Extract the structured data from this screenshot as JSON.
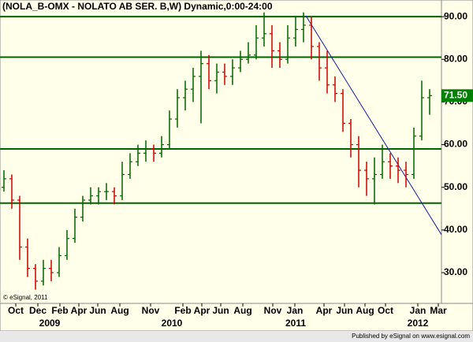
{
  "chart_data": {
    "type": "ohlc",
    "title": "(NOLA_B-OMX - NOLATO AB SER. B,W) Dynamic,0:00-24:00",
    "copyright": "© eSignal, 2011",
    "footer": "Published by eSignal on www.esignal.com",
    "x": [
      1.25,
      3.75,
      6.25,
      8.75,
      11.25,
      13.75,
      16.25,
      18.75,
      21.25,
      23.75,
      26.25,
      28.75,
      31.25,
      33.75,
      36.25,
      38.75,
      41.25,
      43.75,
      46.25,
      48.75,
      51.25,
      53.75,
      56.25,
      58.75,
      61.25,
      63.75,
      66.25,
      68.75,
      71.25,
      73.75,
      76.25,
      78.75,
      81.25,
      83.75,
      86.25,
      88.75,
      91.25,
      93.75,
      96.25,
      98.75,
      101.25,
      103.75,
      106.25,
      108.75,
      111.25,
      113.75,
      116.25,
      118.75,
      121.25,
      123.75,
      126.25,
      128.75,
      131.25,
      133.75,
      136.25
    ],
    "open": [
      50,
      52,
      47,
      36,
      31,
      28,
      31,
      30,
      34,
      38,
      43,
      47,
      48,
      49,
      49,
      48,
      53,
      56,
      58,
      59,
      58,
      60,
      66,
      71,
      73,
      76,
      79,
      75,
      77,
      76,
      78,
      80,
      81,
      85,
      86,
      82,
      80,
      85,
      87,
      88,
      83,
      78,
      74,
      72,
      65,
      60,
      54,
      52,
      53,
      56,
      55,
      54,
      53,
      62,
      71
    ],
    "high": [
      54,
      53,
      48,
      38,
      32,
      33,
      33,
      36,
      40,
      45,
      48,
      50,
      50,
      51,
      50,
      56,
      58,
      60,
      61,
      60,
      62,
      68,
      73,
      75,
      78,
      82,
      81,
      79,
      79,
      80,
      82,
      84,
      88,
      91,
      88,
      84,
      88,
      90,
      91,
      90,
      84,
      82,
      76,
      73,
      66,
      62,
      56,
      57,
      60,
      58,
      57,
      56,
      64,
      75,
      73
    ],
    "low": [
      49,
      45,
      33,
      29,
      26,
      27,
      28,
      29,
      33,
      37,
      42,
      46,
      46,
      47,
      46,
      47,
      52,
      55,
      56,
      56,
      57,
      59,
      64,
      68,
      70,
      65,
      73,
      72,
      74,
      74,
      77,
      79,
      80,
      83,
      78,
      78,
      79,
      83,
      84,
      80,
      75,
      72,
      70,
      63,
      57,
      50,
      48,
      46,
      52,
      52,
      51,
      50,
      52,
      61,
      67
    ],
    "close": [
      52,
      47,
      36,
      31,
      28,
      31,
      30,
      34,
      38,
      43,
      47,
      48,
      49,
      49,
      48,
      53,
      56,
      58,
      59,
      58,
      60,
      66,
      71,
      73,
      76,
      79,
      75,
      77,
      76,
      78,
      80,
      81,
      85,
      86,
      82,
      80,
      85,
      87,
      88,
      83,
      78,
      74,
      72,
      65,
      60,
      54,
      52,
      53,
      56,
      55,
      54,
      53,
      62,
      71,
      71.5
    ],
    "up_color": "#006400",
    "down_color": "#cc0000",
    "last_price": {
      "value": 71.5,
      "label": "71.50"
    },
    "last_price_color": "#008000",
    "hlines": [
      90,
      80.5,
      59,
      46.3
    ],
    "hline_color": "#006400",
    "trendline": {
      "x": [
        97,
        140
      ],
      "y": [
        90.2,
        38.9
      ],
      "color": "#1a1aa0"
    },
    "xlim": [
      0,
      140
    ],
    "ylim": [
      22.8,
      93.9
    ],
    "yticks": [
      {
        "value": 90,
        "label": "90.00"
      },
      {
        "value": 80,
        "label": "80.00"
      },
      {
        "value": 70,
        "label": "70.00"
      },
      {
        "value": 60,
        "label": "60.00"
      },
      {
        "value": 50,
        "label": "50.00"
      },
      {
        "value": 40,
        "label": "40.00"
      },
      {
        "value": 30,
        "label": "30.00"
      }
    ],
    "xticks": [
      {
        "value": 5,
        "label": "Oct"
      },
      {
        "value": 12,
        "label": "Dec"
      },
      {
        "value": 19,
        "label": "Feb"
      },
      {
        "value": 25,
        "label": "Apr"
      },
      {
        "value": 31,
        "label": "Jun"
      },
      {
        "value": 38,
        "label": "Aug"
      },
      {
        "value": 47.75,
        "label": "Nov"
      },
      {
        "value": 58,
        "label": "Feb"
      },
      {
        "value": 64,
        "label": "Apr"
      },
      {
        "value": 70,
        "label": "Jun"
      },
      {
        "value": 77,
        "label": "Aug"
      },
      {
        "value": 86.5,
        "label": "Nov"
      },
      {
        "value": 93.5,
        "label": "Jan"
      },
      {
        "value": 102.75,
        "label": "Apr"
      },
      {
        "value": 109.25,
        "label": "Jun"
      },
      {
        "value": 115.75,
        "label": "Aug"
      },
      {
        "value": 122.25,
        "label": "Oct"
      },
      {
        "value": 132.5,
        "label": "Jan"
      },
      {
        "value": 139,
        "label": "Mar"
      }
    ],
    "year_ticks": [
      {
        "value": 15.75,
        "label": "2009"
      },
      {
        "value": 54.5,
        "label": "2010"
      },
      {
        "value": 93.75,
        "label": "2011"
      },
      {
        "value": 132.5,
        "label": "2012"
      }
    ]
  }
}
